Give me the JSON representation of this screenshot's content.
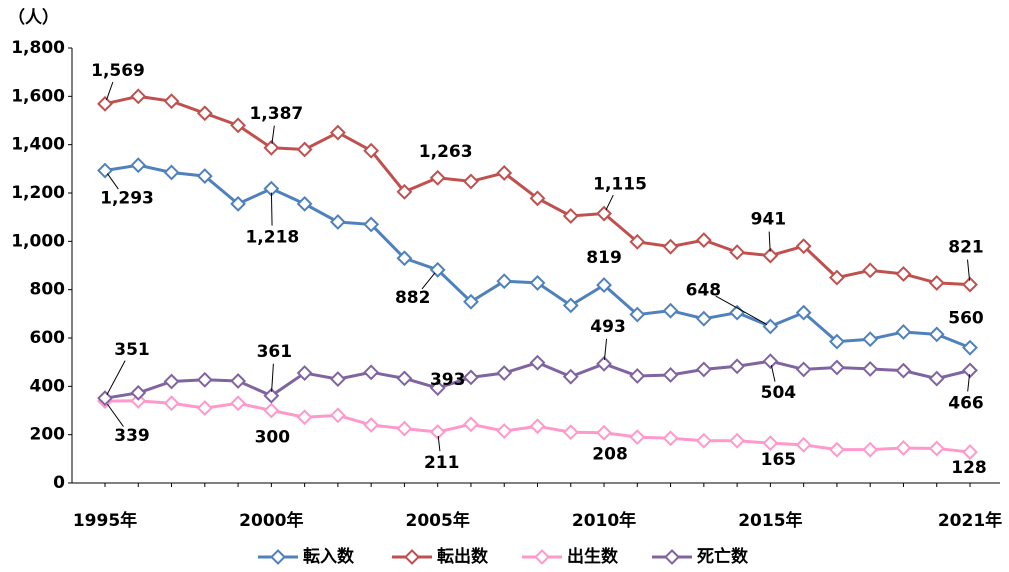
{
  "chart_data": {
    "type": "line",
    "unit_label": "（人）",
    "categories": [
      "1995年",
      null,
      null,
      null,
      null,
      "2000年",
      null,
      null,
      null,
      null,
      "2005年",
      null,
      null,
      null,
      null,
      "2010年",
      null,
      null,
      null,
      null,
      "2015年",
      null,
      null,
      null,
      null,
      null,
      "2021年"
    ],
    "ylim": [
      0,
      1800
    ],
    "yticks": [
      0,
      200,
      400,
      600,
      800,
      {
        "value": 1000,
        "label": "1,000"
      },
      {
        "value": 1200,
        "label": "1,200"
      },
      {
        "value": 1400,
        "label": "1,400"
      },
      {
        "value": 1600,
        "label": "1,600"
      },
      {
        "value": 1800,
        "label": "1,800"
      }
    ],
    "grid": false,
    "legend": "bottom",
    "series": [
      {
        "name": "転入数",
        "color": "#4f81bd",
        "values": [
          1293,
          1315,
          1285,
          1270,
          1155,
          1218,
          1155,
          1080,
          1070,
          930,
          882,
          750,
          835,
          828,
          735,
          819,
          697,
          713,
          680,
          705,
          648,
          705,
          585,
          595,
          625,
          615,
          560
        ],
        "value_labels": [
          "1,293",
          null,
          null,
          null,
          null,
          "1,218",
          null,
          null,
          null,
          null,
          "882",
          null,
          null,
          null,
          null,
          "819",
          null,
          null,
          null,
          null,
          "648",
          null,
          null,
          null,
          null,
          null,
          "560"
        ]
      },
      {
        "name": "転出数",
        "color": "#c0504d",
        "values": [
          1569,
          1600,
          1580,
          1530,
          1480,
          1387,
          1380,
          1450,
          1375,
          1205,
          1263,
          1248,
          1283,
          1178,
          1105,
          1115,
          998,
          978,
          1005,
          955,
          941,
          980,
          850,
          880,
          865,
          828,
          821
        ],
        "value_labels": [
          "1,569",
          null,
          null,
          null,
          null,
          "1,387",
          null,
          null,
          null,
          null,
          "1,263",
          null,
          null,
          null,
          null,
          "1,115",
          null,
          null,
          null,
          null,
          "941",
          null,
          null,
          null,
          null,
          null,
          "821"
        ]
      },
      {
        "name": "出生数",
        "color": "#ff99cc",
        "values": [
          339,
          340,
          330,
          310,
          330,
          300,
          272,
          280,
          240,
          225,
          211,
          243,
          215,
          235,
          210,
          208,
          190,
          185,
          175,
          175,
          165,
          158,
          138,
          138,
          145,
          143,
          128
        ],
        "value_labels": [
          "339",
          null,
          null,
          null,
          null,
          "300",
          null,
          null,
          null,
          null,
          "211",
          null,
          null,
          null,
          null,
          "208",
          null,
          null,
          null,
          null,
          "165",
          null,
          null,
          null,
          null,
          null,
          "128"
        ]
      },
      {
        "name": "死亡数",
        "color": "#8064a2",
        "values": [
          351,
          373,
          420,
          427,
          422,
          361,
          455,
          430,
          458,
          433,
          393,
          437,
          455,
          498,
          440,
          493,
          443,
          447,
          470,
          483,
          504,
          470,
          478,
          472,
          465,
          432,
          466
        ],
        "value_labels": [
          "351",
          null,
          null,
          null,
          null,
          "361",
          null,
          null,
          null,
          null,
          "393",
          null,
          null,
          null,
          null,
          "493",
          null,
          null,
          null,
          null,
          "504",
          null,
          null,
          null,
          null,
          null,
          "466"
        ]
      }
    ]
  }
}
